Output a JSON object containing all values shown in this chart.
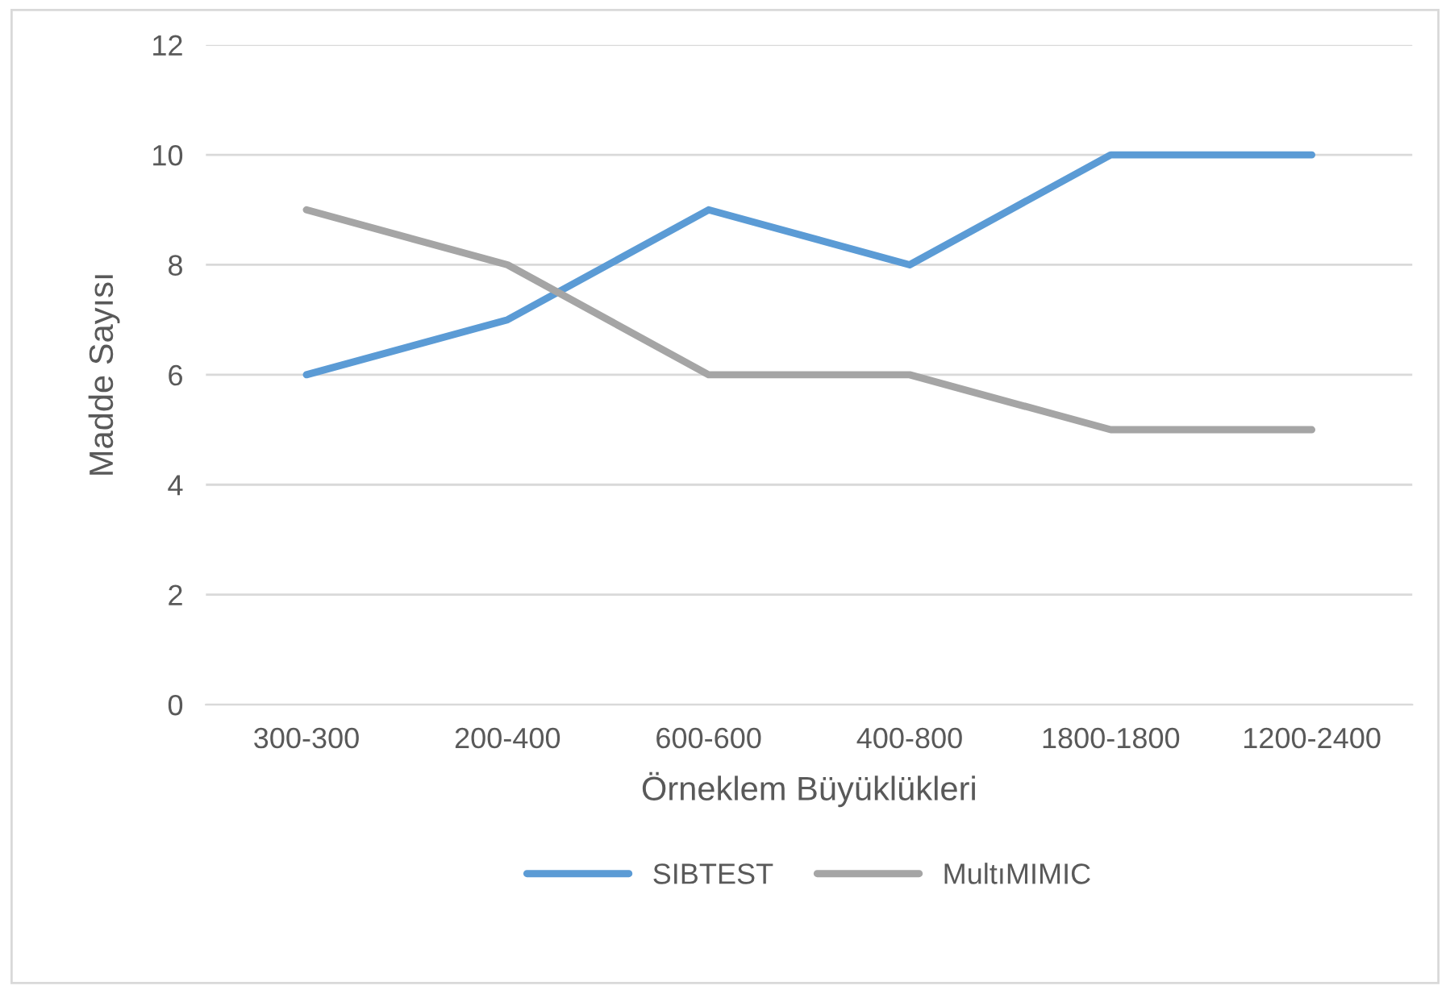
{
  "chart_data": {
    "type": "line",
    "xlabel": "Örneklem Büyüklükleri",
    "ylabel": "Madde Sayısı",
    "categories": [
      "300-300",
      "200-400",
      "600-600",
      "400-800",
      "1800-1800",
      "1200-2400"
    ],
    "series": [
      {
        "name": "SIBTEST",
        "color": "#5b9bd5",
        "values": [
          6,
          7,
          9,
          8,
          10,
          10
        ]
      },
      {
        "name": "MultıMIMIC",
        "color": "#a5a5a5",
        "values": [
          9,
          8,
          6,
          6,
          5,
          5
        ]
      }
    ],
    "ylim": [
      0,
      12
    ],
    "yticks": [
      0,
      2,
      4,
      6,
      8,
      10,
      12
    ],
    "grid": "y",
    "legend": "bottom",
    "marker": "none",
    "line_style": "solid"
  }
}
